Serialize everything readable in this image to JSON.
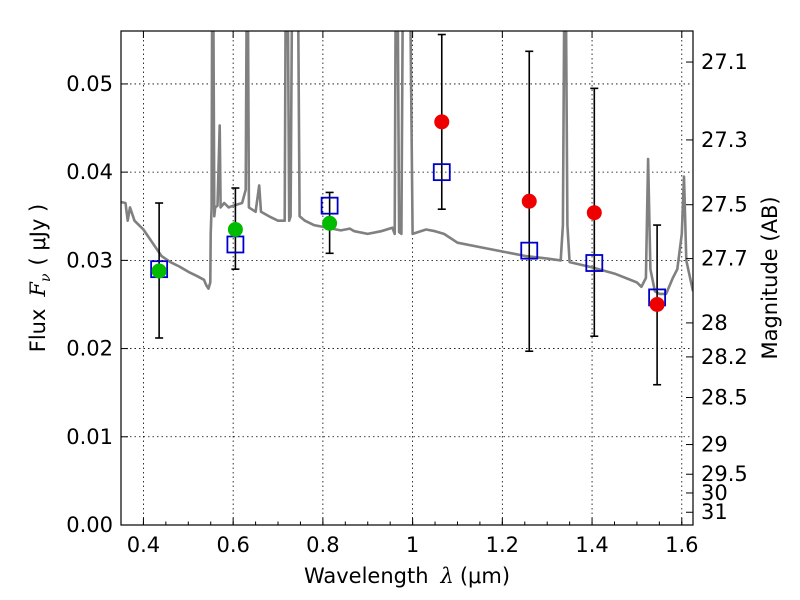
{
  "chart_data": {
    "type": "scatter",
    "xlabel_text": "Wavelength",
    "xlabel_symbol": "λ",
    "xlabel_unit": "(μm)",
    "ylabel_text": "Flux",
    "ylabel_symbol": "F",
    "ylabel_subscript": "ν",
    "ylabel_unit": "( μJy )",
    "y2label": "Magnitude (AB)",
    "xlim": [
      0.35,
      1.625
    ],
    "ylim": [
      0.0,
      0.056
    ],
    "grid": true,
    "x_ticks": [
      {
        "value": 0.4,
        "label": "0.4"
      },
      {
        "value": 0.6,
        "label": "0.6"
      },
      {
        "value": 0.8,
        "label": "0.8"
      },
      {
        "value": 1.0,
        "label": "1"
      },
      {
        "value": 1.2,
        "label": "1.2"
      },
      {
        "value": 1.4,
        "label": "1.4"
      },
      {
        "value": 1.6,
        "label": "1.6"
      }
    ],
    "y_ticks": [
      {
        "value": 0.0,
        "label": "0.00"
      },
      {
        "value": 0.01,
        "label": "0.01"
      },
      {
        "value": 0.02,
        "label": "0.02"
      },
      {
        "value": 0.03,
        "label": "0.03"
      },
      {
        "value": 0.04,
        "label": "0.04"
      },
      {
        "value": 0.05,
        "label": "0.05"
      }
    ],
    "y2_ticks": [
      {
        "value": 27.1,
        "label": "27.1"
      },
      {
        "value": 27.3,
        "label": "27.3"
      },
      {
        "value": 27.5,
        "label": "27.5"
      },
      {
        "value": 27.7,
        "label": "27.7"
      },
      {
        "value": 28.0,
        "label": "28"
      },
      {
        "value": 28.2,
        "label": "28.2"
      },
      {
        "value": 28.5,
        "label": "28.5"
      },
      {
        "value": 29.0,
        "label": "29"
      },
      {
        "value": 29.5,
        "label": "29.5"
      },
      {
        "value": 30.0,
        "label": "30"
      },
      {
        "value": 31.0,
        "label": "31"
      }
    ],
    "model_spectrum": {
      "color": "#808080",
      "points": [
        [
          0.35,
          0.0366
        ],
        [
          0.36,
          0.0365
        ],
        [
          0.365,
          0.0345
        ],
        [
          0.37,
          0.036
        ],
        [
          0.38,
          0.0345
        ],
        [
          0.39,
          0.034
        ],
        [
          0.4,
          0.0335
        ],
        [
          0.42,
          0.032
        ],
        [
          0.44,
          0.0305
        ],
        [
          0.46,
          0.0298
        ],
        [
          0.48,
          0.0293
        ],
        [
          0.5,
          0.0287
        ],
        [
          0.52,
          0.0282
        ],
        [
          0.535,
          0.0278
        ],
        [
          0.54,
          0.0272
        ],
        [
          0.545,
          0.0268
        ],
        [
          0.549,
          0.0275
        ],
        [
          0.55,
          0.033
        ],
        [
          0.552,
          0.036
        ],
        [
          0.553,
          0.058
        ],
        [
          0.556,
          0.058
        ],
        [
          0.558,
          0.035
        ],
        [
          0.56,
          0.036
        ],
        [
          0.565,
          0.0362
        ],
        [
          0.57,
          0.0453
        ],
        [
          0.572,
          0.036
        ],
        [
          0.58,
          0.0365
        ],
        [
          0.59,
          0.036
        ],
        [
          0.6,
          0.0362
        ],
        [
          0.62,
          0.0365
        ],
        [
          0.628,
          0.038
        ],
        [
          0.63,
          0.058
        ],
        [
          0.633,
          0.058
        ],
        [
          0.635,
          0.036
        ],
        [
          0.65,
          0.0355
        ],
        [
          0.658,
          0.0385
        ],
        [
          0.662,
          0.0355
        ],
        [
          0.68,
          0.035
        ],
        [
          0.7,
          0.0345
        ],
        [
          0.715,
          0.0345
        ],
        [
          0.717,
          0.058
        ],
        [
          0.722,
          0.058
        ],
        [
          0.725,
          0.0345
        ],
        [
          0.728,
          0.035
        ],
        [
          0.731,
          0.058
        ],
        [
          0.745,
          0.058
        ],
        [
          0.748,
          0.035
        ],
        [
          0.76,
          0.0345
        ],
        [
          0.78,
          0.034
        ],
        [
          0.8,
          0.0338
        ],
        [
          0.82,
          0.0336
        ],
        [
          0.84,
          0.0334
        ],
        [
          0.86,
          0.0336
        ],
        [
          0.87,
          0.0333
        ],
        [
          0.9,
          0.033
        ],
        [
          0.93,
          0.0333
        ],
        [
          0.955,
          0.0337
        ],
        [
          0.96,
          0.033
        ],
        [
          0.962,
          0.058
        ],
        [
          0.967,
          0.058
        ],
        [
          0.97,
          0.0332
        ],
        [
          0.975,
          0.033
        ],
        [
          0.978,
          0.058
        ],
        [
          0.995,
          0.058
        ],
        [
          1.0,
          0.033
        ],
        [
          1.03,
          0.0335
        ],
        [
          1.05,
          0.0333
        ],
        [
          1.07,
          0.033
        ],
        [
          1.1,
          0.032
        ],
        [
          1.15,
          0.0315
        ],
        [
          1.2,
          0.031
        ],
        [
          1.25,
          0.0305
        ],
        [
          1.3,
          0.0302
        ],
        [
          1.33,
          0.03
        ],
        [
          1.335,
          0.034
        ],
        [
          1.338,
          0.058
        ],
        [
          1.342,
          0.058
        ],
        [
          1.345,
          0.034
        ],
        [
          1.35,
          0.0298
        ],
        [
          1.4,
          0.0292
        ],
        [
          1.45,
          0.0285
        ],
        [
          1.5,
          0.0275
        ],
        [
          1.51,
          0.027
        ],
        [
          1.52,
          0.028
        ],
        [
          1.525,
          0.0415
        ],
        [
          1.53,
          0.029
        ],
        [
          1.54,
          0.0265
        ],
        [
          1.55,
          0.0262
        ],
        [
          1.565,
          0.0262
        ],
        [
          1.58,
          0.028
        ],
        [
          1.59,
          0.029
        ],
        [
          1.6,
          0.033
        ],
        [
          1.605,
          0.0395
        ],
        [
          1.61,
          0.03
        ],
        [
          1.625,
          0.0265
        ]
      ]
    },
    "error_bars": [
      {
        "x": 0.435,
        "ylow": 0.0212,
        "yhigh": 0.0365
      },
      {
        "x": 0.605,
        "ylow": 0.029,
        "yhigh": 0.0382
      },
      {
        "x": 0.815,
        "ylow": 0.0308,
        "yhigh": 0.0377
      },
      {
        "x": 1.065,
        "ylow": 0.0358,
        "yhigh": 0.0556
      },
      {
        "x": 1.26,
        "ylow": 0.0197,
        "yhigh": 0.0537
      },
      {
        "x": 1.405,
        "ylow": 0.0214,
        "yhigh": 0.0495
      },
      {
        "x": 1.545,
        "ylow": 0.0159,
        "yhigh": 0.034
      }
    ],
    "series": [
      {
        "marker": "square-open",
        "color": "#0000cc",
        "points": [
          [
            0.435,
            0.029
          ],
          [
            0.605,
            0.0318
          ],
          [
            0.815,
            0.0362
          ],
          [
            1.065,
            0.04
          ],
          [
            1.26,
            0.0311
          ],
          [
            1.405,
            0.0297
          ],
          [
            1.545,
            0.0258
          ]
        ]
      },
      {
        "marker": "circle",
        "color": "#00bb00",
        "points": [
          [
            0.435,
            0.0288
          ],
          [
            0.605,
            0.0335
          ],
          [
            0.815,
            0.0342
          ]
        ]
      },
      {
        "marker": "circle",
        "color": "#ee0000",
        "points": [
          [
            1.065,
            0.0457
          ],
          [
            1.26,
            0.0367
          ],
          [
            1.405,
            0.0354
          ],
          [
            1.545,
            0.025
          ]
        ]
      }
    ]
  }
}
